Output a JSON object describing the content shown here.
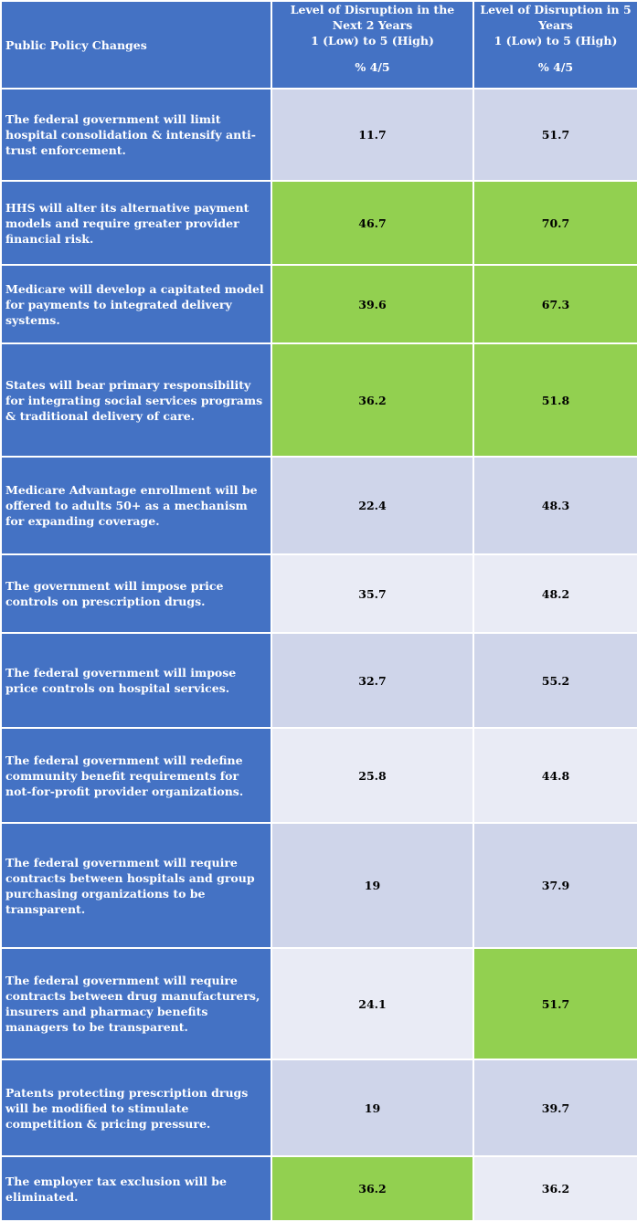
{
  "header": {
    "policy_label": "Public Policy Changes",
    "col1_line1": "Level of Disruption in the",
    "col1_line2": "Next 2 Years",
    "col1_line3": "1 (Low) to 5 (High)",
    "col1_unit": "% 4/5",
    "col2_line1": "Level of Disruption in 5",
    "col2_line2": "Years",
    "col2_line3": "1 (Low) to 5 (High)",
    "col2_unit": "% 4/5"
  },
  "colors": {
    "header_blue": "#4472c4",
    "light": "#cfd5ea",
    "pale": "#e9ebf5",
    "green": "#92d050"
  },
  "rows": [
    {
      "policy": "The federal government will limit hospital consolidation & intensify anti-trust enforcement.",
      "y2": "11.7",
      "y5": "51.7"
    },
    {
      "policy": "HHS will alter its alternative payment models and require greater provider financial risk.",
      "y2": "46.7",
      "y5": "70.7"
    },
    {
      "policy": "Medicare will develop a capitated model for payments to integrated delivery systems.",
      "y2": "39.6",
      "y5": "67.3"
    },
    {
      "policy": "States will bear primary responsibility for integrating social services programs & traditional delivery of care.",
      "y2": "36.2",
      "y5": "51.8"
    },
    {
      "policy": "Medicare Advantage enrollment will be offered to adults 50+ as a mechanism for expanding coverage.",
      "y2": "22.4",
      "y5": "48.3"
    },
    {
      "policy": "The government will impose price controls on prescription drugs.",
      "y2": "35.7",
      "y5": "48.2"
    },
    {
      "policy": "The federal government will impose price controls on hospital services.",
      "y2": "32.7",
      "y5": "55.2"
    },
    {
      "policy": "The federal government will redefine community benefit requirements for not-for-profit provider organizations.",
      "y2": "25.8",
      "y5": "44.8"
    },
    {
      "policy": "The federal government will require contracts between hospitals and group purchasing organizations to be transparent.",
      "y2": "19",
      "y5": "37.9"
    },
    {
      "policy": "The federal government will require contracts between drug manufacturers, insurers and pharmacy benefits managers to be transparent.",
      "y2": "24.1",
      "y5": "51.7"
    },
    {
      "policy": "Patents protecting prescription drugs will be modified to stimulate competition & pricing pressure.",
      "y2": "19",
      "y5": "39.7"
    },
    {
      "policy": "The employer tax exclusion will be eliminated.",
      "y2": "36.2",
      "y5": "36.2"
    }
  ]
}
